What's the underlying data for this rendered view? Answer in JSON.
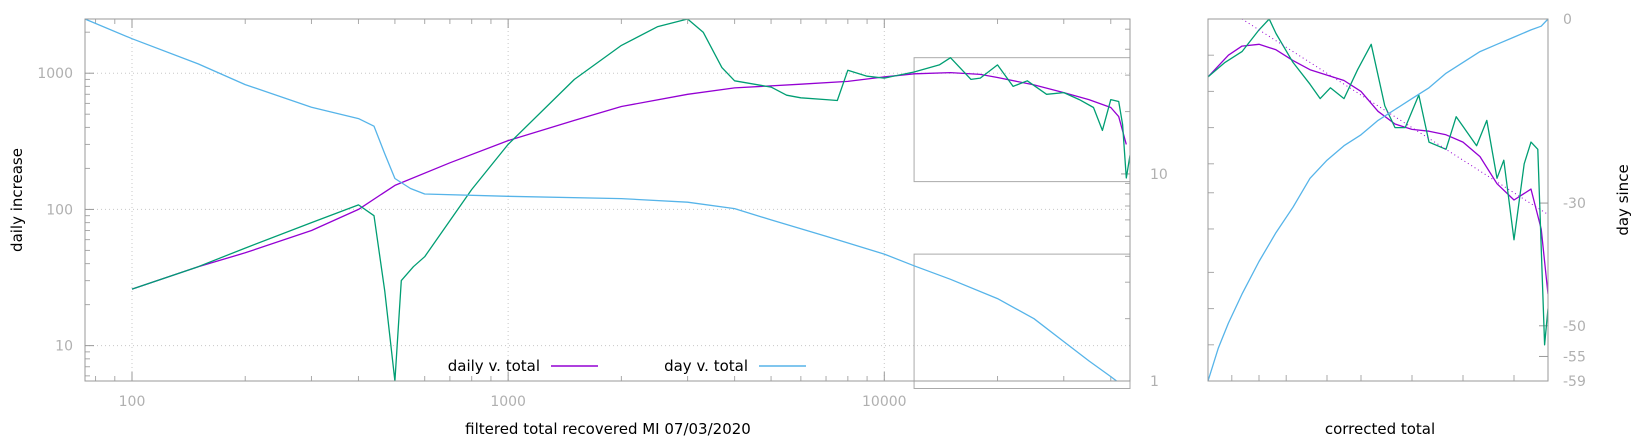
{
  "chart_data": [
    {
      "type": "line",
      "xlabel": "filtered total recovered MI 07/03/2020",
      "ylabel": "daily increase",
      "y2label": "",
      "x_scale": "log",
      "y_scale": "log",
      "y2_scale": "log",
      "xlim": [
        75,
        45000
      ],
      "ylim": [
        5.5,
        2500
      ],
      "y2lim": [
        1,
        56
      ],
      "x_ticks": [
        {
          "value": 100,
          "label": "100"
        },
        {
          "value": 1000,
          "label": "1000"
        },
        {
          "value": 10000,
          "label": "10000"
        }
      ],
      "y_ticks": [
        {
          "value": 10,
          "label": "10"
        },
        {
          "value": 100,
          "label": "100"
        },
        {
          "value": 1000,
          "label": "1000"
        }
      ],
      "y2_ticks": [
        {
          "value": 1,
          "label": "1"
        },
        {
          "value": 10,
          "label": "10"
        }
      ],
      "grid": true,
      "legend_position": "bottom-center",
      "series": [
        {
          "name": "daily v. total",
          "color": "#9400d3",
          "axis": "y",
          "x": [
            100,
            150,
            200,
            300,
            400,
            500,
            700,
            1000,
            1500,
            2000,
            3000,
            4000,
            6000,
            8000,
            10000,
            12000,
            15000,
            18000,
            20000,
            25000,
            30000,
            35000,
            40000,
            42000,
            44000
          ],
          "y": [
            26,
            38,
            48,
            70,
            100,
            150,
            220,
            320,
            450,
            570,
            700,
            780,
            830,
            870,
            940,
            990,
            1010,
            980,
            930,
            820,
            720,
            640,
            560,
            480,
            300
          ]
        },
        {
          "name": "",
          "color": "#009e73",
          "axis": "y",
          "x": [
            100,
            150,
            200,
            300,
            400,
            440,
            470,
            500,
            520,
            560,
            600,
            800,
            1000,
            1500,
            2000,
            2500,
            3000,
            3300,
            3700,
            4000,
            5000,
            5500,
            6000,
            7000,
            7500,
            8000,
            9000,
            10000,
            12000,
            14000,
            15000,
            17000,
            18000,
            20000,
            22000,
            24000,
            27000,
            30000,
            33000,
            36000,
            38000,
            40000,
            42000,
            43000,
            44000,
            45000
          ],
          "y": [
            26,
            38,
            52,
            80,
            108,
            90,
            25,
            5.5,
            30,
            38,
            45,
            140,
            300,
            900,
            1600,
            2200,
            2500,
            2000,
            1100,
            880,
            790,
            690,
            660,
            640,
            630,
            1050,
            950,
            920,
            1020,
            1150,
            1300,
            900,
            920,
            1150,
            800,
            880,
            700,
            720,
            640,
            560,
            380,
            640,
            620,
            420,
            170,
            250
          ]
        },
        {
          "name": "day v. total",
          "color": "#56b4e9",
          "axis": "y2",
          "x": [
            75,
            100,
            150,
            200,
            300,
            400,
            440,
            470,
            500,
            550,
            600,
            1000,
            2000,
            3000,
            4000,
            5000,
            7000,
            10000,
            12000,
            15000,
            20000,
            25000,
            30000,
            35000,
            40000,
            43000,
            45000
          ],
          "y": [
            56,
            45,
            34,
            27,
            21,
            18.5,
            17,
            12.5,
            9.5,
            8.5,
            8.0,
            7.8,
            7.6,
            7.3,
            6.8,
            6.0,
            5.0,
            4.1,
            3.6,
            3.1,
            2.5,
            2.0,
            1.55,
            1.25,
            1.05,
            0.95,
            0.92
          ]
        }
      ],
      "inset_box": {
        "x": [
          12000,
          45000
        ],
        "y": [
          160,
          1300
        ]
      }
    },
    {
      "type": "line",
      "xlabel": "corrected total",
      "ylabel": "",
      "y2label": "day since",
      "y2_ticks": [
        {
          "value": 0,
          "label": "0"
        },
        {
          "value": -30,
          "label": "-30"
        },
        {
          "value": -50,
          "label": "-50"
        },
        {
          "value": -55,
          "label": "-55"
        },
        {
          "value": -59,
          "label": "-59"
        }
      ],
      "legend_position": "none",
      "series": [
        {
          "color": "#9400d3",
          "axis": "y",
          "x": [
            0,
            0.03,
            0.06,
            0.1,
            0.15,
            0.2,
            0.25,
            0.3,
            0.35,
            0.4,
            0.45,
            0.5,
            0.55,
            0.6,
            0.65,
            0.7,
            0.75,
            0.8,
            0.85,
            0.9,
            0.95,
            0.98,
            1
          ],
          "y": [
            0.84,
            0.87,
            0.9,
            0.925,
            0.93,
            0.915,
            0.885,
            0.86,
            0.845,
            0.83,
            0.8,
            0.745,
            0.71,
            0.695,
            0.69,
            0.68,
            0.66,
            0.62,
            0.545,
            0.5,
            0.53,
            0.42,
            0.24
          ]
        },
        {
          "color": "#009e73",
          "axis": "y",
          "x": [
            0,
            0.05,
            0.1,
            0.15,
            0.18,
            0.2,
            0.25,
            0.3,
            0.33,
            0.36,
            0.4,
            0.44,
            0.48,
            0.52,
            0.55,
            0.58,
            0.62,
            0.65,
            0.7,
            0.73,
            0.76,
            0.79,
            0.82,
            0.85,
            0.87,
            0.9,
            0.93,
            0.95,
            0.97,
            0.99,
            1
          ],
          "y": [
            0.84,
            0.88,
            0.91,
            0.97,
            1.0,
            0.96,
            0.88,
            0.82,
            0.78,
            0.81,
            0.78,
            0.86,
            0.93,
            0.76,
            0.7,
            0.7,
            0.79,
            0.66,
            0.64,
            0.73,
            0.69,
            0.65,
            0.72,
            0.56,
            0.61,
            0.39,
            0.6,
            0.66,
            0.64,
            0.1,
            0.2
          ]
        },
        {
          "color": "#56b4e9",
          "axis": "y2",
          "x": [
            0,
            0.03,
            0.06,
            0.1,
            0.15,
            0.2,
            0.25,
            0.3,
            0.35,
            0.4,
            0.45,
            0.5,
            0.55,
            0.6,
            0.65,
            0.7,
            0.75,
            0.8,
            0.85,
            0.9,
            0.95,
            0.98,
            1
          ],
          "y": [
            0.0,
            0.09,
            0.16,
            0.24,
            0.33,
            0.41,
            0.48,
            0.56,
            0.61,
            0.65,
            0.68,
            0.72,
            0.75,
            0.78,
            0.81,
            0.85,
            0.88,
            0.91,
            0.93,
            0.95,
            0.97,
            0.98,
            1.0
          ]
        },
        {
          "color": "#9400d3",
          "style": "dotted",
          "axis": "y",
          "x": [
            0.1,
            1.0
          ],
          "y": [
            1.0,
            0.46
          ]
        }
      ]
    }
  ]
}
